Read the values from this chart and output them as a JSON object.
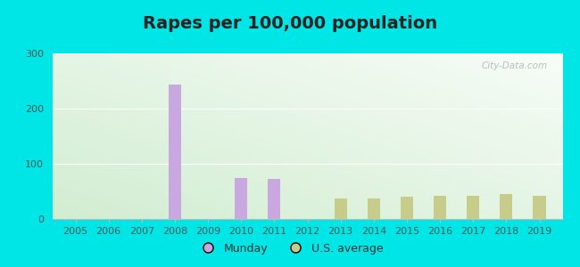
{
  "title": "Rapes per 100,000 population",
  "years": [
    2005,
    2006,
    2007,
    2008,
    2009,
    2010,
    2011,
    2012,
    2013,
    2014,
    2015,
    2016,
    2017,
    2018,
    2019
  ],
  "munday": [
    0,
    0,
    0,
    243,
    0,
    75,
    72,
    0,
    0,
    0,
    0,
    0,
    0,
    0,
    0
  ],
  "us_avg": [
    0,
    0,
    0,
    0,
    0,
    0,
    0,
    0,
    37,
    37,
    40,
    42,
    42,
    45,
    42
  ],
  "munday_color": "#c9a8e0",
  "us_avg_color": "#c8cc8a",
  "bar_width": 0.38,
  "ylim": [
    0,
    300
  ],
  "yticks": [
    0,
    100,
    200,
    300
  ],
  "outer_background": "#00e5e5",
  "watermark": "City-Data.com",
  "legend_munday": "Munday",
  "legend_us": "U.S. average",
  "title_fontsize": 14,
  "title_color": "#222222",
  "tick_color": "#555555",
  "tick_fontsize": 8
}
